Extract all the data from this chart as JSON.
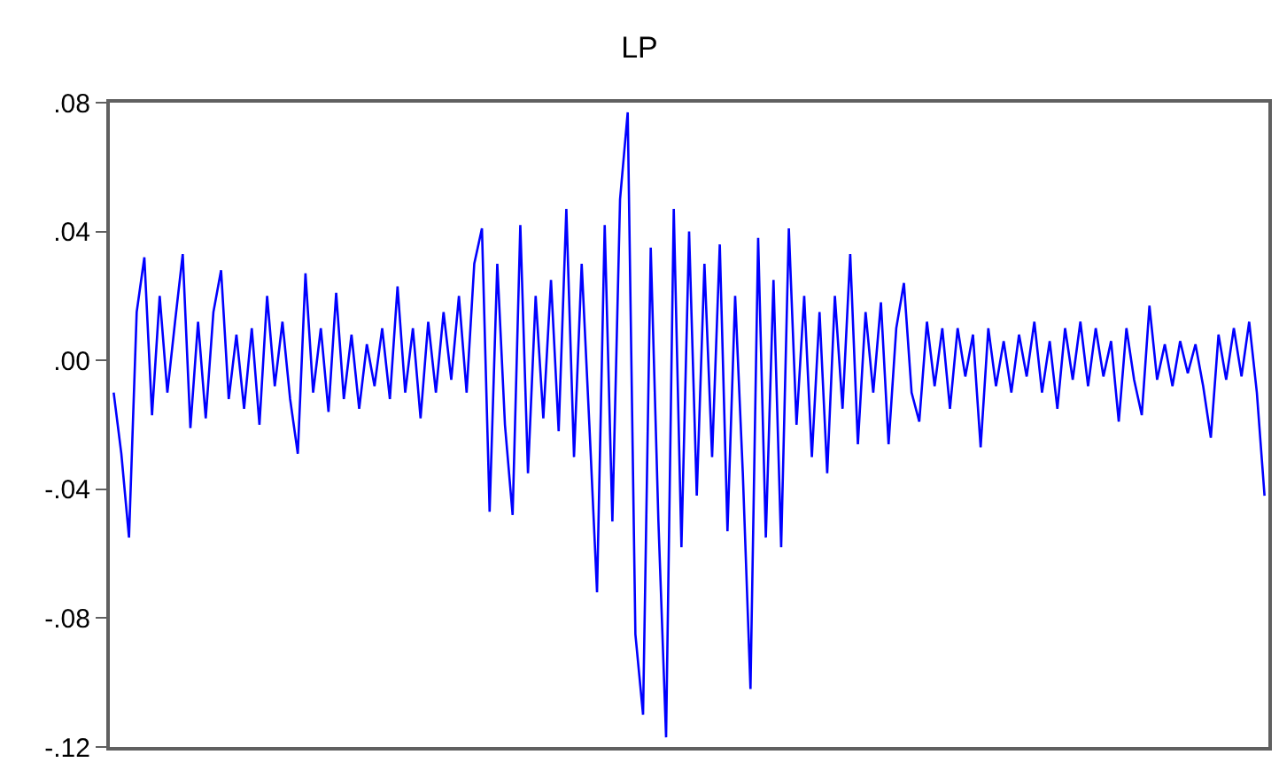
{
  "chart_data": {
    "type": "line",
    "title": "LP",
    "categories": [
      null,
      null,
      null,
      null,
      null,
      null,
      null,
      null,
      null,
      null,
      null,
      null,
      null,
      null,
      null,
      null,
      null,
      null,
      null,
      null,
      null,
      null,
      null,
      null,
      null,
      null,
      null,
      null,
      null,
      null,
      null,
      null,
      null,
      null,
      null,
      null,
      null,
      null,
      null,
      null,
      null,
      null,
      null,
      null,
      null,
      null,
      null,
      null,
      null,
      null,
      null,
      null,
      null,
      null,
      null,
      null,
      null,
      null,
      null,
      null,
      null,
      null,
      null,
      null,
      null,
      null,
      null,
      null,
      null,
      null,
      null,
      null,
      null,
      null,
      null,
      null,
      null,
      null,
      null,
      null,
      null,
      null,
      null,
      null,
      null,
      null,
      null,
      null,
      null,
      null,
      null,
      null,
      null,
      null,
      null,
      null,
      null,
      null,
      null,
      null,
      null,
      null,
      null,
      null,
      null,
      null,
      null,
      null,
      null,
      null,
      null,
      null,
      null,
      null,
      null,
      null,
      null,
      null,
      null,
      null,
      null,
      null,
      null,
      null,
      null,
      null,
      null,
      null,
      null,
      null,
      null,
      null,
      null,
      null,
      null,
      null,
      null,
      null,
      null,
      null,
      null,
      null,
      null,
      null,
      null,
      null,
      null,
      null,
      null,
      null,
      null
    ],
    "series": [
      {
        "color": "#0000ff",
        "values": [
          -0.01,
          -0.029,
          -0.055,
          0.015,
          0.032,
          -0.017,
          0.02,
          -0.01,
          0.012,
          0.033,
          -0.021,
          0.012,
          -0.018,
          0.015,
          0.028,
          -0.012,
          0.008,
          -0.015,
          0.01,
          -0.02,
          0.02,
          -0.008,
          0.012,
          -0.012,
          -0.029,
          0.027,
          -0.01,
          0.01,
          -0.016,
          0.021,
          -0.012,
          0.008,
          -0.015,
          0.005,
          -0.008,
          0.01,
          -0.012,
          0.023,
          -0.01,
          0.01,
          -0.018,
          0.012,
          -0.01,
          0.015,
          -0.006,
          0.02,
          -0.01,
          0.03,
          0.041,
          -0.047,
          0.03,
          -0.02,
          -0.048,
          0.042,
          -0.035,
          0.02,
          -0.018,
          0.025,
          -0.022,
          0.047,
          -0.03,
          0.03,
          -0.02,
          -0.072,
          0.042,
          -0.05,
          0.05,
          0.077,
          -0.085,
          -0.11,
          0.035,
          -0.05,
          -0.117,
          0.047,
          -0.058,
          0.04,
          -0.042,
          0.03,
          -0.03,
          0.036,
          -0.053,
          0.02,
          -0.035,
          -0.102,
          0.038,
          -0.055,
          0.025,
          -0.058,
          0.041,
          -0.02,
          0.02,
          -0.03,
          0.015,
          -0.035,
          0.02,
          -0.015,
          0.033,
          -0.026,
          0.015,
          -0.01,
          0.018,
          -0.026,
          0.01,
          0.024,
          -0.01,
          -0.019,
          0.012,
          -0.008,
          0.01,
          -0.015,
          0.01,
          -0.005,
          0.008,
          -0.027,
          0.01,
          -0.008,
          0.006,
          -0.01,
          0.008,
          -0.005,
          0.012,
          -0.01,
          0.006,
          -0.015,
          0.01,
          -0.006,
          0.012,
          -0.008,
          0.01,
          -0.005,
          0.006,
          -0.019,
          0.01,
          -0.006,
          -0.017,
          0.017,
          -0.006,
          0.005,
          -0.008,
          0.006,
          -0.004,
          0.005,
          -0.008,
          -0.024,
          0.008,
          -0.006,
          0.01,
          -0.005,
          0.012,
          -0.01,
          -0.042
        ]
      }
    ],
    "ylim": [
      -0.12,
      0.08
    ],
    "yticks": [
      {
        "value": 0.08,
        "label": ".08"
      },
      {
        "value": 0.04,
        "label": ".04"
      },
      {
        "value": 0,
        "label": ".00"
      },
      {
        "value": -0.04,
        "label": "-.04"
      },
      {
        "value": -0.08,
        "label": "-.08"
      },
      {
        "value": -0.12,
        "label": "-.12"
      }
    ],
    "grid": false,
    "tick_labels": "y",
    "marker": "none",
    "line_style": "solid"
  }
}
